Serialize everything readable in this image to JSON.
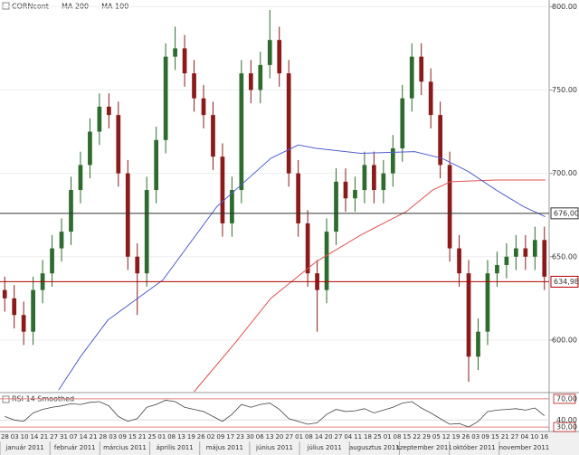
{
  "chart_data": {
    "type": "candlestick",
    "legend": [
      "CORNcont",
      "MA 200",
      "MA 100"
    ],
    "up_color": "#2e6b2e",
    "down_color": "#8b1a1a",
    "xlim": [
      -0.5,
      57.5
    ],
    "ylim": [
      569,
      804
    ],
    "yticks": [
      {
        "value": 600,
        "label": "600.00"
      },
      {
        "value": 650,
        "label": "650.00"
      },
      {
        "value": 700,
        "label": "700.00"
      },
      {
        "value": 750,
        "label": "750.00"
      },
      {
        "value": 800,
        "label": "800.00"
      }
    ],
    "grid": true,
    "open": [
      630,
      625,
      615,
      605,
      630,
      640,
      655,
      665,
      690,
      705,
      725,
      740,
      735,
      700,
      650,
      640,
      690,
      720,
      770,
      775,
      760,
      745,
      735,
      710,
      670,
      690,
      760,
      750,
      765,
      780,
      760,
      700,
      670,
      640,
      630,
      665,
      695,
      685,
      690,
      705,
      690,
      700,
      715,
      745,
      770,
      755,
      735,
      705,
      655,
      640,
      590,
      605,
      640,
      645,
      650,
      655,
      650,
      660
    ],
    "high": [
      638,
      633,
      623,
      638,
      648,
      663,
      673,
      698,
      713,
      733,
      748,
      748,
      743,
      708,
      658,
      698,
      728,
      778,
      788,
      783,
      768,
      753,
      743,
      718,
      698,
      768,
      768,
      773,
      798,
      788,
      768,
      708,
      678,
      648,
      673,
      703,
      703,
      698,
      713,
      713,
      708,
      723,
      753,
      778,
      778,
      763,
      743,
      713,
      663,
      648,
      613,
      648,
      653,
      658,
      663,
      663,
      668,
      668
    ],
    "low": [
      617,
      607,
      597,
      597,
      622,
      632,
      647,
      657,
      682,
      697,
      717,
      727,
      692,
      642,
      615,
      632,
      682,
      712,
      762,
      752,
      737,
      727,
      702,
      662,
      662,
      682,
      742,
      742,
      757,
      752,
      692,
      662,
      632,
      605,
      622,
      657,
      677,
      677,
      682,
      682,
      682,
      692,
      707,
      737,
      747,
      727,
      697,
      647,
      632,
      575,
      582,
      597,
      632,
      637,
      642,
      642,
      642,
      630
    ],
    "close": [
      625,
      615,
      605,
      630,
      640,
      655,
      665,
      690,
      705,
      725,
      740,
      735,
      700,
      650,
      640,
      690,
      720,
      770,
      775,
      760,
      745,
      735,
      710,
      670,
      690,
      760,
      750,
      765,
      780,
      760,
      700,
      670,
      640,
      630,
      665,
      695,
      685,
      690,
      705,
      690,
      700,
      715,
      745,
      770,
      755,
      735,
      705,
      655,
      640,
      590,
      605,
      640,
      645,
      650,
      655,
      650,
      660,
      638
    ],
    "series": [
      {
        "name": "MA 200",
        "color": "#e05050",
        "x": [
          20,
          24.3,
          28.1,
          32.9,
          37.6,
          42.4,
          45.2,
          47.1,
          51.9,
          57.1
        ],
        "values": [
          569,
          598,
          625,
          647,
          663,
          677,
          690,
          695,
          696,
          696
        ]
      },
      {
        "name": "MA 100",
        "color": "#5060d0",
        "x": [
          5.7,
          8,
          10.9,
          16.7,
          22.4,
          28.1,
          31,
          32.9,
          37.6,
          43.3,
          46.2,
          49,
          51.9,
          54.8,
          57.1
        ],
        "values": [
          570,
          590,
          612,
          636,
          680,
          709,
          717,
          715,
          712,
          713,
          709,
          701,
          690,
          680,
          674
        ]
      }
    ],
    "levels": [
      {
        "value": 676,
        "label": "676,00",
        "color": "#333333"
      },
      {
        "value": 634.98,
        "label": "634,98",
        "color": "#b00000"
      }
    ],
    "rsi": {
      "title": "RSI 14 Smoothed",
      "ylim": [
        25,
        75
      ],
      "yticks": [
        {
          "value": 30,
          "label": "30,00"
        },
        {
          "value": 40,
          "label": "40,00"
        },
        {
          "value": 70,
          "label": "70,00"
        }
      ],
      "values": [
        45,
        40,
        38,
        50,
        55,
        58,
        60,
        63,
        62,
        65,
        66,
        60,
        45,
        38,
        42,
        58,
        62,
        68,
        66,
        58,
        55,
        52,
        45,
        38,
        48,
        62,
        58,
        62,
        64,
        55,
        42,
        38,
        34,
        36,
        48,
        55,
        52,
        53,
        56,
        50,
        54,
        58,
        64,
        66,
        57,
        50,
        42,
        34,
        35,
        30,
        38,
        52,
        54,
        55,
        56,
        54,
        57,
        46
      ]
    },
    "day_labels": [
      "28",
      "03",
      "10",
      "14",
      "21",
      "27",
      "31",
      "07",
      "14",
      "21",
      "28",
      "03",
      "09",
      "15",
      "21",
      "25",
      "01",
      "08",
      "13",
      "19",
      "26",
      "02",
      "09",
      "17",
      "23",
      "30",
      "06",
      "13",
      "20",
      "27",
      "01",
      "08",
      "14",
      "20",
      "27",
      "04",
      "11",
      "18",
      "25",
      "01",
      "08",
      "15",
      "22",
      "29",
      "05",
      "12",
      "19",
      "26",
      "03",
      "09",
      "15",
      "21",
      "27",
      "04",
      "10",
      "16"
    ],
    "months": [
      "január 2011",
      "február 2011",
      "március 2011",
      "április 2011",
      "május 2011",
      "június 2011",
      "július 2011",
      "augusztus 2011",
      "szeptember 2011",
      "október 2011",
      "november 2011"
    ]
  }
}
